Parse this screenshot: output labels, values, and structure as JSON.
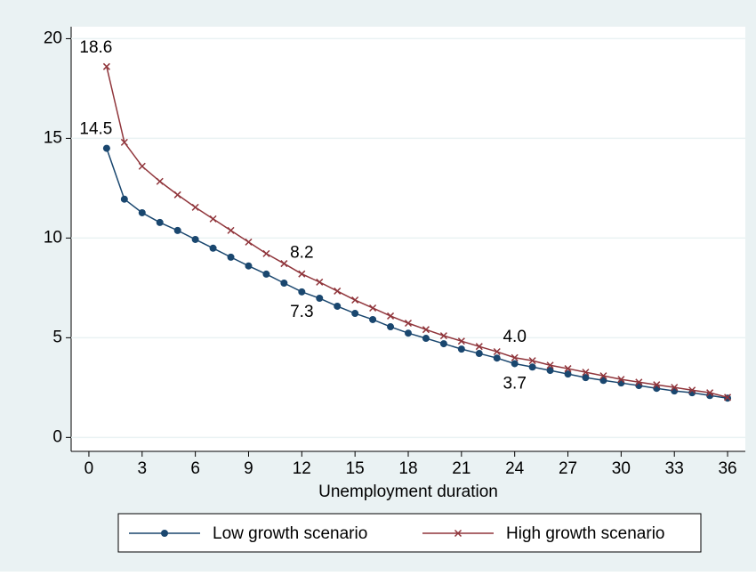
{
  "chart_data": {
    "type": "line",
    "x_label": "Unemployment duration",
    "x": [
      1,
      2,
      3,
      4,
      5,
      6,
      7,
      8,
      9,
      10,
      11,
      12,
      13,
      14,
      15,
      16,
      17,
      18,
      19,
      20,
      21,
      22,
      23,
      24,
      25,
      26,
      27,
      28,
      29,
      30,
      31,
      32,
      33,
      34,
      35,
      36
    ],
    "xlim": [
      -1,
      37
    ],
    "xticks": [
      0,
      3,
      6,
      9,
      12,
      15,
      18,
      21,
      24,
      27,
      30,
      33,
      36
    ],
    "ylim": [
      -0.7,
      20.6
    ],
    "yticks": [
      0,
      5,
      10,
      15,
      20
    ],
    "grid": true,
    "legend": "bottom",
    "series": [
      {
        "name": "Low growth scenario",
        "color": "#1a476f",
        "marker": "circle",
        "values": [
          14.5,
          11.95,
          11.27,
          10.78,
          10.38,
          9.93,
          9.49,
          9.04,
          8.6,
          8.19,
          7.74,
          7.3,
          6.98,
          6.58,
          6.22,
          5.91,
          5.55,
          5.23,
          4.97,
          4.7,
          4.43,
          4.21,
          3.98,
          3.7,
          3.53,
          3.36,
          3.18,
          3.0,
          2.86,
          2.73,
          2.6,
          2.46,
          2.33,
          2.24,
          2.1,
          1.97
        ],
        "value_labels": [
          "14.5",
          null,
          null,
          null,
          null,
          null,
          null,
          null,
          null,
          null,
          null,
          "7.3",
          null,
          null,
          null,
          null,
          null,
          null,
          null,
          null,
          null,
          null,
          null,
          "3.7",
          null,
          null,
          null,
          null,
          null,
          null,
          null,
          null,
          null,
          null,
          null,
          null
        ]
      },
      {
        "name": "High growth scenario",
        "color": "#90353b",
        "marker": "x",
        "values": [
          18.6,
          14.8,
          13.6,
          12.84,
          12.17,
          11.54,
          10.96,
          10.38,
          9.8,
          9.22,
          8.72,
          8.2,
          7.79,
          7.34,
          6.89,
          6.49,
          6.09,
          5.73,
          5.41,
          5.1,
          4.83,
          4.56,
          4.3,
          4.0,
          3.85,
          3.62,
          3.45,
          3.27,
          3.09,
          2.91,
          2.77,
          2.64,
          2.51,
          2.37,
          2.24,
          2.01
        ],
        "value_labels": [
          "18.6",
          null,
          null,
          null,
          null,
          null,
          null,
          null,
          null,
          null,
          null,
          "8.2",
          null,
          null,
          null,
          null,
          null,
          null,
          null,
          null,
          null,
          null,
          null,
          "4.0",
          null,
          null,
          null,
          null,
          null,
          null,
          null,
          null,
          null,
          null,
          null,
          null
        ]
      }
    ]
  }
}
